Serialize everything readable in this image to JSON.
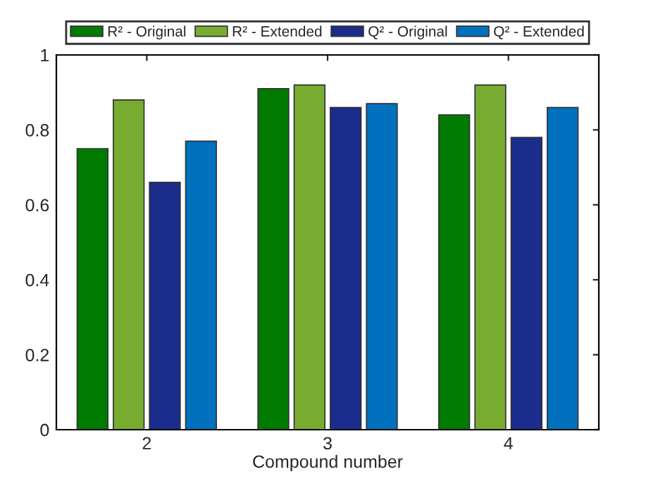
{
  "chart_data": {
    "type": "bar",
    "xlabel": "Compound number",
    "categories": [
      "2",
      "3",
      "4"
    ],
    "series": [
      {
        "name": "R² - Original",
        "color": "#007a00",
        "values": [
          0.75,
          0.91,
          0.84
        ]
      },
      {
        "name": "R² - Extended",
        "color": "#77ac30",
        "values": [
          0.88,
          0.92,
          0.92
        ]
      },
      {
        "name": "Q² - Original",
        "color": "#1a2d8c",
        "values": [
          0.66,
          0.86,
          0.78
        ]
      },
      {
        "name": "Q² - Extended",
        "color": "#0072bd",
        "values": [
          0.77,
          0.87,
          0.86
        ]
      }
    ],
    "ylim": [
      0,
      1
    ],
    "yticks": [
      0,
      0.2,
      0.4,
      0.6,
      0.8,
      1
    ],
    "grid": false,
    "legend": "top"
  }
}
